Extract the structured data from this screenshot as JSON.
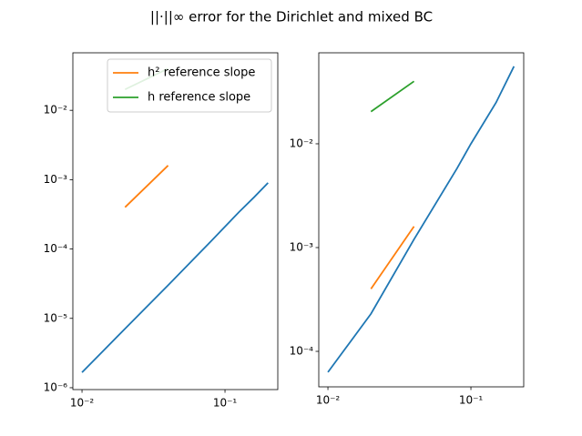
{
  "title": "||·||∞ error for the Dirichlet and mixed BC",
  "chart_data": [
    {
      "type": "line",
      "xscale": "log",
      "yscale": "log",
      "xlim": [
        0.00863,
        0.234
      ],
      "ylim": [
        9.4e-07,
        0.0675
      ],
      "xticks": [
        {
          "value": 0.01,
          "label": "10⁻²"
        },
        {
          "value": 0.1,
          "label": "10⁻¹"
        }
      ],
      "yticks": [
        {
          "value": 1e-06,
          "label": "10⁻⁶"
        },
        {
          "value": 1e-05,
          "label": "10⁻⁵"
        },
        {
          "value": 0.0001,
          "label": "10⁻⁴"
        },
        {
          "value": 0.001,
          "label": "10⁻³"
        },
        {
          "value": 0.01,
          "label": "10⁻²"
        }
      ],
      "legend": "upper right",
      "series": [
        {
          "color": "#1f77b4",
          "x": [
            0.01,
            0.02,
            0.04,
            0.08,
            0.125,
            0.16,
            0.2
          ],
          "values": [
            1.66e-06,
            7.1e-06,
            3e-05,
            0.00013,
            0.00034,
            0.00056,
            0.0009
          ]
        },
        {
          "name": "h² reference slope",
          "color": "#ff7f0e",
          "x": [
            0.02,
            0.04
          ],
          "values": [
            0.0004,
            0.0016
          ]
        },
        {
          "name": "h reference slope",
          "color": "#2ca02c",
          "x": [
            0.02,
            0.04
          ],
          "values": [
            0.02,
            0.04
          ]
        }
      ]
    },
    {
      "type": "line",
      "xscale": "log",
      "yscale": "log",
      "xlim": [
        0.00863,
        0.234
      ],
      "ylim": [
        4.55e-05,
        0.0753
      ],
      "xticks": [
        {
          "value": 0.01,
          "label": "10⁻²"
        },
        {
          "value": 0.1,
          "label": "10⁻¹"
        }
      ],
      "yticks": [
        {
          "value": 0.0001,
          "label": "10⁻⁴"
        },
        {
          "value": 0.001,
          "label": "10⁻³"
        },
        {
          "value": 0.01,
          "label": "10⁻²"
        }
      ],
      "series": [
        {
          "color": "#1f77b4",
          "x": [
            0.01,
            0.02,
            0.04,
            0.08,
            0.1,
            0.15,
            0.2
          ],
          "values": [
            6.3e-05,
            0.00023,
            0.0012,
            0.0058,
            0.01,
            0.025,
            0.0557
          ]
        },
        {
          "color": "#ff7f0e",
          "x": [
            0.02,
            0.04
          ],
          "values": [
            0.0004,
            0.0016
          ]
        },
        {
          "color": "#2ca02c",
          "x": [
            0.02,
            0.04
          ],
          "values": [
            0.0204,
            0.04
          ]
        }
      ]
    }
  ]
}
